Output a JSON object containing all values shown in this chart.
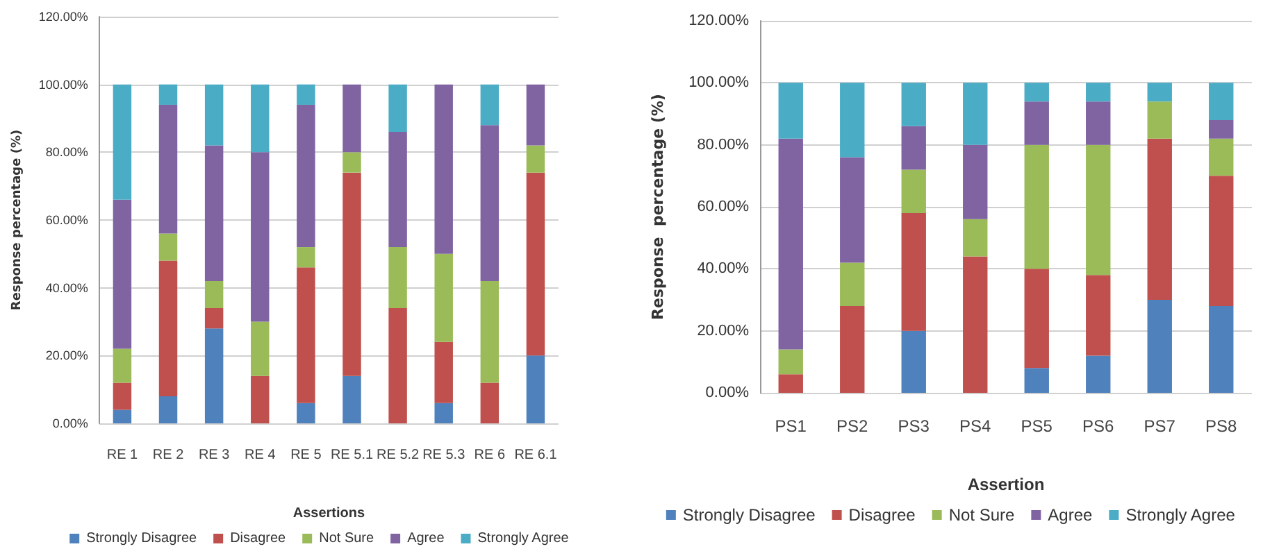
{
  "chart_data": [
    {
      "type": "bar",
      "stacked": true,
      "xlabel": "Assertions",
      "ylabel": "Response percentage (%)",
      "categories": [
        "RE 1",
        "RE 2",
        "RE 3",
        "RE 4",
        "RE 5",
        "RE 5.1",
        "RE 5.2",
        "RE 5.3",
        "RE 6",
        "RE 6.1"
      ],
      "series": [
        {
          "name": "Strongly Disagree",
          "color": "#4f81bd",
          "values": [
            4,
            8,
            28,
            0,
            6,
            14,
            0,
            6,
            0,
            20
          ]
        },
        {
          "name": "Disagree",
          "color": "#c0504d",
          "values": [
            8,
            40,
            6,
            14,
            40,
            60,
            34,
            18,
            12,
            54
          ]
        },
        {
          "name": "Not Sure",
          "color": "#9bbb59",
          "values": [
            10,
            8,
            8,
            16,
            6,
            6,
            18,
            26,
            30,
            8
          ]
        },
        {
          "name": "Agree",
          "color": "#8064a2",
          "values": [
            44,
            38,
            40,
            50,
            42,
            20,
            34,
            50,
            46,
            18
          ]
        },
        {
          "name": "Strongly Agree",
          "color": "#4bacc6",
          "values": [
            34,
            6,
            18,
            20,
            6,
            0,
            14,
            0,
            12,
            0
          ]
        }
      ],
      "ylim": [
        0,
        120
      ],
      "yticks": [
        {
          "value": 0,
          "label": "0.00%"
        },
        {
          "value": 20,
          "label": "20.00%"
        },
        {
          "value": 40,
          "label": "40.00%"
        },
        {
          "value": 60,
          "label": "60.00%"
        },
        {
          "value": 80,
          "label": "80.00%"
        },
        {
          "value": 100,
          "label": "100.00%"
        },
        {
          "value": 120,
          "label": "120.00%"
        }
      ],
      "grid": "y",
      "legend": "bottom"
    },
    {
      "type": "bar",
      "stacked": true,
      "xlabel": "Assertion",
      "ylabel": "Response  percentage (%)",
      "categories": [
        "PS1",
        "PS2",
        "PS3",
        "PS4",
        "PS5",
        "PS6",
        "PS7",
        "PS8"
      ],
      "series": [
        {
          "name": "Strongly Disagree",
          "color": "#4f81bd",
          "values": [
            0,
            0,
            20,
            0,
            8,
            12,
            30,
            28
          ]
        },
        {
          "name": "Disagree",
          "color": "#c0504d",
          "values": [
            6,
            28,
            38,
            44,
            32,
            26,
            52,
            42
          ]
        },
        {
          "name": "Not Sure",
          "color": "#9bbb59",
          "values": [
            8,
            14,
            14,
            12,
            40,
            42,
            12,
            12
          ]
        },
        {
          "name": "Agree",
          "color": "#8064a2",
          "values": [
            68,
            34,
            14,
            24,
            14,
            14,
            0,
            6
          ]
        },
        {
          "name": "Strongly Agree",
          "color": "#4bacc6",
          "values": [
            18,
            24,
            14,
            20,
            6,
            6,
            6,
            12
          ]
        }
      ],
      "ylim": [
        0,
        120
      ],
      "yticks": [
        {
          "value": 0,
          "label": "0.00%"
        },
        {
          "value": 20,
          "label": "20.00%"
        },
        {
          "value": 40,
          "label": "40.00%"
        },
        {
          "value": 60,
          "label": "60.00%"
        },
        {
          "value": 80,
          "label": "80.00%"
        },
        {
          "value": 100,
          "label": "100.00%"
        },
        {
          "value": 120,
          "label": "120.00%"
        }
      ],
      "grid": "y",
      "legend": "bottom"
    }
  ]
}
